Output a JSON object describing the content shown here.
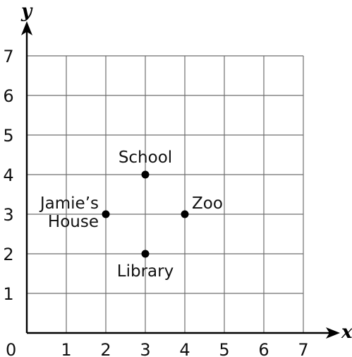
{
  "chart_data": {
    "type": "scatter",
    "xlabel": "x",
    "ylabel": "y",
    "origin_label": "0",
    "xlim": [
      0,
      7
    ],
    "ylim": [
      0,
      7
    ],
    "x_ticks": [
      "1",
      "2",
      "3",
      "4",
      "5",
      "6",
      "7"
    ],
    "y_ticks": [
      "1",
      "2",
      "3",
      "4",
      "5",
      "6",
      "7"
    ],
    "grid": true,
    "points": [
      {
        "label_lines": [
          "School"
        ],
        "x": 3,
        "y": 4,
        "label_position": "above"
      },
      {
        "label_lines": [
          "Jamie’s",
          "House"
        ],
        "x": 2,
        "y": 3,
        "label_position": "left"
      },
      {
        "label_lines": [
          "Zoo"
        ],
        "x": 4,
        "y": 3,
        "label_position": "right"
      },
      {
        "label_lines": [
          "Library"
        ],
        "x": 3,
        "y": 2,
        "label_position": "below"
      }
    ]
  }
}
